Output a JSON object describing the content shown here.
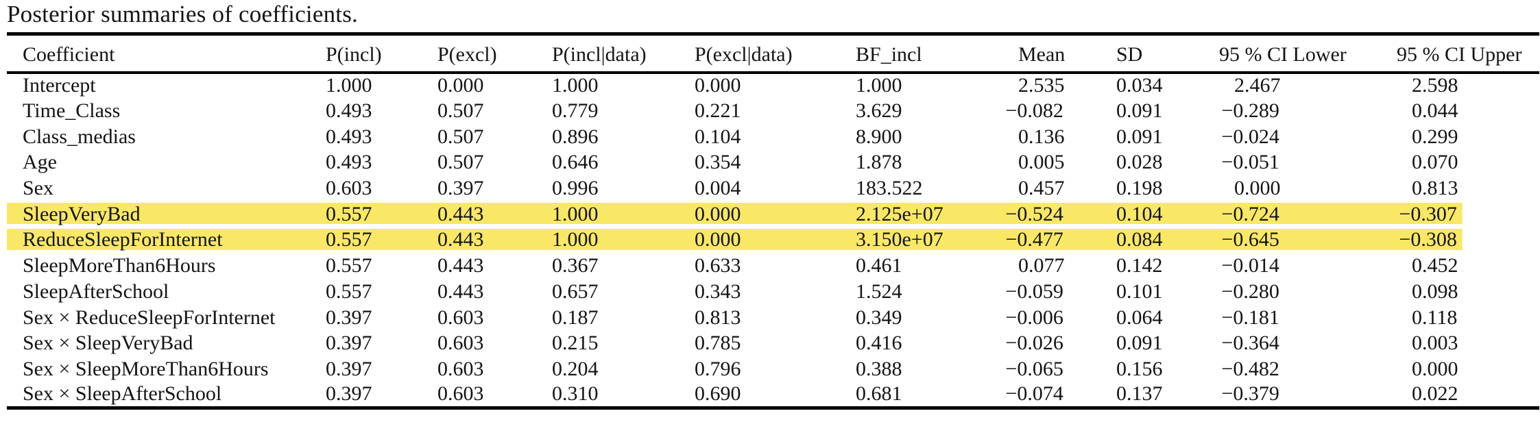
{
  "title": "Posterior summaries of coefficients.",
  "highlight_color": "#F9E865",
  "table": {
    "columns": [
      "Coefficient",
      "P(incl)",
      "P(excl)",
      "P(incl|data)",
      "P(excl|data)",
      "BF_incl",
      "Mean",
      "SD",
      "95 % CI Lower",
      "95 % CI Upper"
    ],
    "rows": [
      {
        "coefficient": "Intercept",
        "highlighted": false,
        "values": [
          "1.000",
          "0.000",
          "1.000",
          "0.000",
          "1.000",
          "2.535",
          "0.034",
          "2.467",
          "2.598"
        ]
      },
      {
        "coefficient": "Time_Class",
        "highlighted": false,
        "values": [
          "0.493",
          "0.507",
          "0.779",
          "0.221",
          "3.629",
          "−0.082",
          "0.091",
          "−0.289",
          "0.044"
        ]
      },
      {
        "coefficient": "Class_medias",
        "highlighted": false,
        "values": [
          "0.493",
          "0.507",
          "0.896",
          "0.104",
          "8.900",
          "0.136",
          "0.091",
          "−0.024",
          "0.299"
        ]
      },
      {
        "coefficient": "Age",
        "highlighted": false,
        "values": [
          "0.493",
          "0.507",
          "0.646",
          "0.354",
          "1.878",
          "0.005",
          "0.028",
          "−0.051",
          "0.070"
        ]
      },
      {
        "coefficient": "Sex",
        "highlighted": false,
        "values": [
          "0.603",
          "0.397",
          "0.996",
          "0.004",
          "183.522",
          "0.457",
          "0.198",
          "0.000",
          "0.813"
        ]
      },
      {
        "coefficient": "SleepVeryBad",
        "highlighted": true,
        "values": [
          "0.557",
          "0.443",
          "1.000",
          "0.000",
          "2.125e+07",
          "−0.524",
          "0.104",
          "−0.724",
          "−0.307"
        ]
      },
      {
        "coefficient": "ReduceSleepForInternet",
        "highlighted": true,
        "values": [
          "0.557",
          "0.443",
          "1.000",
          "0.000",
          "3.150e+07",
          "−0.477",
          "0.084",
          "−0.645",
          "−0.308"
        ]
      },
      {
        "coefficient": "SleepMoreThan6Hours",
        "highlighted": false,
        "values": [
          "0.557",
          "0.443",
          "0.367",
          "0.633",
          "0.461",
          "0.077",
          "0.142",
          "−0.014",
          "0.452"
        ]
      },
      {
        "coefficient": "SleepAfterSchool",
        "highlighted": false,
        "values": [
          "0.557",
          "0.443",
          "0.657",
          "0.343",
          "1.524",
          "−0.059",
          "0.101",
          "−0.280",
          "0.098"
        ]
      },
      {
        "coefficient": "Sex × ReduceSleepForInternet",
        "highlighted": false,
        "values": [
          "0.397",
          "0.603",
          "0.187",
          "0.813",
          "0.349",
          "−0.006",
          "0.064",
          "−0.181",
          "0.118"
        ]
      },
      {
        "coefficient": "Sex × SleepVeryBad",
        "highlighted": false,
        "values": [
          "0.397",
          "0.603",
          "0.215",
          "0.785",
          "0.416",
          "−0.026",
          "0.091",
          "−0.364",
          "0.003"
        ]
      },
      {
        "coefficient": "Sex × SleepMoreThan6Hours",
        "highlighted": false,
        "values": [
          "0.397",
          "0.603",
          "0.204",
          "0.796",
          "0.388",
          "−0.065",
          "0.156",
          "−0.482",
          "0.000"
        ]
      },
      {
        "coefficient": "Sex × SleepAfterSchool",
        "highlighted": false,
        "values": [
          "0.397",
          "0.603",
          "0.310",
          "0.690",
          "0.681",
          "−0.074",
          "0.137",
          "−0.379",
          "0.022"
        ]
      }
    ]
  }
}
